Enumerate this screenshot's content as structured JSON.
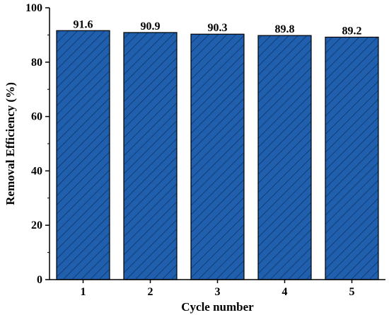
{
  "chart_data": {
    "type": "bar",
    "categories": [
      "1",
      "2",
      "3",
      "4",
      "5"
    ],
    "values": [
      91.6,
      90.9,
      90.3,
      89.8,
      89.2
    ],
    "value_labels": [
      "91.6",
      "90.9",
      "90.3",
      "89.8",
      "89.2"
    ],
    "xlabel": "Cycle number",
    "ylabel": "Removal  Efficiency (%)",
    "ylim": [
      0,
      100
    ],
    "yticks": [
      0,
      20,
      40,
      60,
      80,
      100
    ],
    "grid": false,
    "bar_color": "#1f5fad",
    "hatch_color": "#0d2b55",
    "bar_pattern": "diagonal-hatch"
  }
}
